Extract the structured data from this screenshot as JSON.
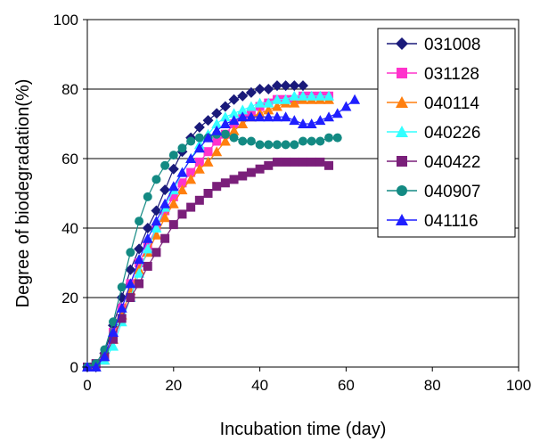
{
  "chart_data": {
    "type": "scatter",
    "xlabel": "Incubation time (day)",
    "ylabel": "Degree of biodegradation(%)",
    "xlim": [
      0,
      100
    ],
    "ylim": [
      0,
      100
    ],
    "xticks": [
      0,
      20,
      40,
      60,
      80,
      100
    ],
    "yticks": [
      0,
      20,
      40,
      60,
      80,
      100
    ],
    "grid": "horizontal",
    "legend_position": "top-right",
    "series": [
      {
        "name": "031008",
        "color": "#1a1a7a",
        "marker": "diamond",
        "x": [
          0,
          2,
          4,
          6,
          8,
          10,
          12,
          14,
          16,
          18,
          20,
          22,
          24,
          26,
          28,
          30,
          32,
          34,
          36,
          38,
          40,
          42,
          44,
          46,
          48,
          50
        ],
        "y": [
          0,
          0,
          4,
          12,
          20,
          28,
          34,
          40,
          45,
          51,
          57,
          62,
          66,
          69,
          71,
          73,
          75,
          77,
          78,
          79,
          80,
          80,
          81,
          81,
          81,
          81
        ]
      },
      {
        "name": "031128",
        "color": "#ff33cc",
        "marker": "square",
        "x": [
          0,
          2,
          4,
          6,
          8,
          10,
          12,
          14,
          16,
          18,
          20,
          22,
          24,
          26,
          28,
          30,
          32,
          34,
          36,
          38,
          40,
          42,
          44,
          46,
          48,
          50,
          52,
          54,
          56
        ],
        "y": [
          0,
          0,
          3,
          10,
          17,
          24,
          30,
          35,
          40,
          45,
          49,
          53,
          56,
          59,
          62,
          65,
          67,
          70,
          72,
          73,
          75,
          76,
          77,
          77,
          77,
          78,
          78,
          78,
          78
        ]
      },
      {
        "name": "040114",
        "color": "#ff7f0e",
        "marker": "triangle",
        "x": [
          0,
          2,
          4,
          6,
          8,
          10,
          12,
          14,
          16,
          18,
          20,
          22,
          24,
          26,
          28,
          30,
          32,
          34,
          36,
          38,
          40,
          42,
          44,
          46,
          48,
          50,
          52,
          54,
          56
        ],
        "y": [
          0,
          0,
          2,
          8,
          15,
          22,
          28,
          33,
          38,
          43,
          47,
          51,
          54,
          57,
          59,
          62,
          65,
          68,
          70,
          72,
          73,
          74,
          75,
          76,
          76,
          77,
          77,
          77,
          77
        ]
      },
      {
        "name": "040226",
        "color": "#33ffff",
        "marker": "triangle",
        "x": [
          0,
          2,
          4,
          6,
          8,
          10,
          12,
          14,
          16,
          18,
          20,
          22,
          24,
          26,
          28,
          30,
          32,
          34,
          36,
          38,
          40,
          42,
          44,
          46,
          48,
          50,
          52,
          54,
          56
        ],
        "y": [
          0,
          0,
          2,
          6,
          13,
          20,
          27,
          34,
          40,
          46,
          51,
          56,
          60,
          64,
          67,
          70,
          72,
          73,
          74,
          75,
          76,
          76,
          77,
          77,
          78,
          78,
          78,
          78,
          78
        ]
      },
      {
        "name": "040422",
        "color": "#7a1f7a",
        "marker": "square",
        "x": [
          0,
          2,
          4,
          6,
          8,
          10,
          12,
          14,
          16,
          18,
          20,
          22,
          24,
          26,
          28,
          30,
          32,
          34,
          36,
          38,
          40,
          42,
          44,
          46,
          48,
          50,
          52,
          54,
          56
        ],
        "y": [
          0,
          1,
          3,
          8,
          14,
          20,
          24,
          29,
          33,
          37,
          41,
          44,
          46,
          48,
          50,
          52,
          53,
          54,
          55,
          56,
          57,
          58,
          59,
          59,
          59,
          59,
          59,
          59,
          58
        ]
      },
      {
        "name": "040907",
        "color": "#138a83",
        "marker": "circle",
        "x": [
          0,
          2,
          4,
          6,
          8,
          10,
          12,
          14,
          16,
          18,
          20,
          22,
          24,
          26,
          28,
          30,
          32,
          34,
          36,
          38,
          40,
          42,
          44,
          46,
          48,
          50,
          52,
          54,
          56,
          58
        ],
        "y": [
          0,
          1,
          5,
          13,
          23,
          33,
          42,
          49,
          54,
          58,
          61,
          63,
          65,
          66,
          66,
          67,
          67,
          66,
          65,
          65,
          64,
          64,
          64,
          64,
          64,
          65,
          65,
          65,
          66,
          66
        ]
      },
      {
        "name": "041116",
        "color": "#1f1fff",
        "marker": "triangle",
        "x": [
          0,
          2,
          4,
          6,
          8,
          10,
          12,
          14,
          16,
          18,
          20,
          22,
          24,
          26,
          28,
          30,
          32,
          34,
          36,
          38,
          40,
          42,
          44,
          46,
          48,
          50,
          52,
          54,
          56,
          58,
          60,
          62
        ],
        "y": [
          0,
          0,
          3,
          10,
          17,
          24,
          31,
          37,
          42,
          47,
          52,
          56,
          60,
          63,
          66,
          68,
          70,
          71,
          72,
          72,
          72,
          72,
          72,
          72,
          71,
          70,
          70,
          71,
          72,
          73,
          75,
          77
        ]
      }
    ]
  }
}
